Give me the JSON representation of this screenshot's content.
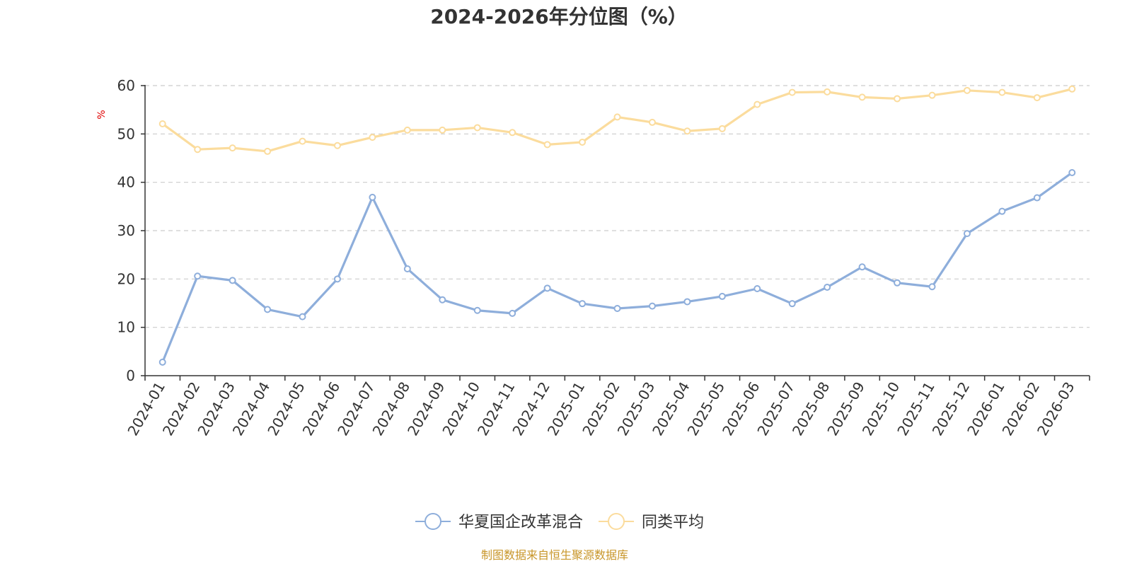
{
  "chart_data": {
    "type": "line",
    "title": "2024-2026年分位图（%）",
    "ylabel": "%",
    "ylim": [
      0,
      60
    ],
    "yticks": [
      0,
      10,
      20,
      30,
      40,
      50,
      60
    ],
    "grid": true,
    "legend_position": "bottom-center",
    "categories": [
      "2024-01",
      "2024-02",
      "2024-03",
      "2024-04",
      "2024-05",
      "2024-06",
      "2024-07",
      "2024-08",
      "2024-09",
      "2024-10",
      "2024-11",
      "2024-12",
      "2025-01",
      "2025-02",
      "2025-03",
      "2025-04",
      "2025-05",
      "2025-06",
      "2025-07",
      "2025-08",
      "2025-09",
      "2025-10",
      "2025-11",
      "2025-12",
      "2026-01",
      "2026-02",
      "2026-03"
    ],
    "series": [
      {
        "name": "华夏国企改革混合",
        "color": "#8eaedb",
        "values": [
          2.8,
          20.6,
          19.7,
          13.7,
          12.2,
          20.0,
          36.9,
          22.1,
          15.7,
          13.5,
          12.9,
          18.1,
          14.9,
          13.9,
          14.4,
          15.3,
          16.4,
          18.0,
          14.9,
          18.3,
          22.5,
          19.2,
          18.4,
          29.4,
          34.0,
          36.8,
          42.0
        ]
      },
      {
        "name": "同类平均",
        "color": "#fbdc9d",
        "values": [
          52.1,
          46.8,
          47.1,
          46.4,
          48.5,
          47.6,
          49.3,
          50.8,
          50.8,
          51.3,
          50.3,
          47.8,
          48.3,
          53.5,
          52.4,
          50.6,
          51.1,
          56.1,
          58.6,
          58.7,
          57.6,
          57.3,
          58.0,
          59.0,
          58.6,
          57.5,
          59.3
        ]
      }
    ],
    "source": "制图数据来自恒生聚源数据库"
  }
}
